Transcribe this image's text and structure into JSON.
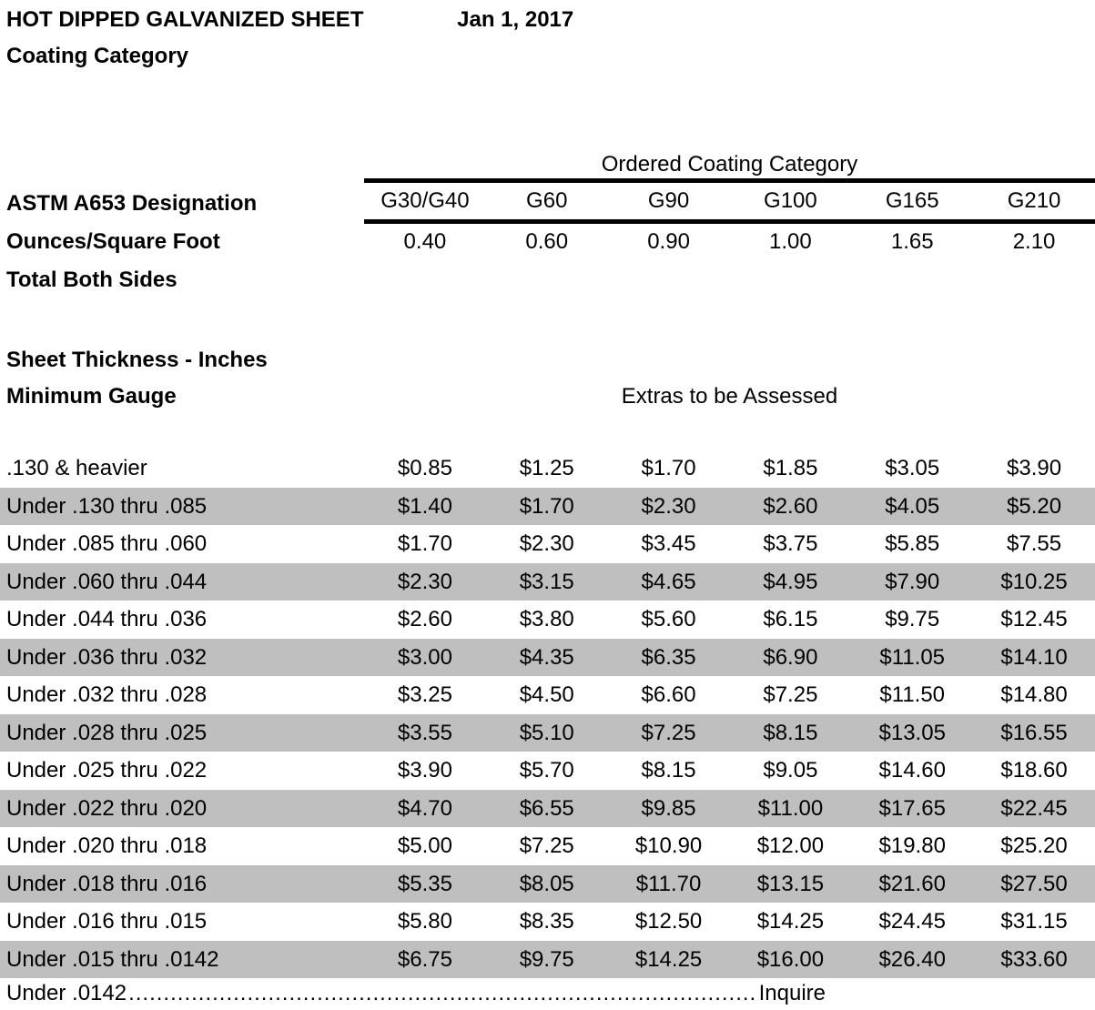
{
  "header": {
    "title": "HOT DIPPED GALVANIZED SHEET",
    "date": "Jan 1, 2017",
    "subtitle": "Coating Category"
  },
  "table": {
    "group_header": "Ordered Coating Category",
    "designation_label": "ASTM A653 Designation",
    "ounces_label": "Ounces/Square Foot",
    "total_label": "Total Both Sides",
    "thickness_label": "Sheet Thickness - Inches",
    "gauge_label": "Minimum Gauge",
    "extras_label": "Extras to be Assessed",
    "columns": [
      "G30/G40",
      "G60",
      "G90",
      "G100",
      "G165",
      "G210"
    ],
    "ounces": [
      "0.40",
      "0.60",
      "0.90",
      "1.00",
      "1.65",
      "2.10"
    ],
    "rows": [
      {
        "label": ".130 & heavier",
        "values": [
          "$0.85",
          "$1.25",
          "$1.70",
          "$1.85",
          "$3.05",
          "$3.90"
        ],
        "shaded": false
      },
      {
        "label": "Under .130 thru .085",
        "values": [
          "$1.40",
          "$1.70",
          "$2.30",
          "$2.60",
          "$4.05",
          "$5.20"
        ],
        "shaded": true
      },
      {
        "label": "Under .085 thru .060",
        "values": [
          "$1.70",
          "$2.30",
          "$3.45",
          "$3.75",
          "$5.85",
          "$7.55"
        ],
        "shaded": false
      },
      {
        "label": "Under .060 thru .044",
        "values": [
          "$2.30",
          "$3.15",
          "$4.65",
          "$4.95",
          "$7.90",
          "$10.25"
        ],
        "shaded": true
      },
      {
        "label": "Under .044 thru .036",
        "values": [
          "$2.60",
          "$3.80",
          "$5.60",
          "$6.15",
          "$9.75",
          "$12.45"
        ],
        "shaded": false
      },
      {
        "label": "Under .036 thru .032",
        "values": [
          "$3.00",
          "$4.35",
          "$6.35",
          "$6.90",
          "$11.05",
          "$14.10"
        ],
        "shaded": true
      },
      {
        "label": "Under .032 thru .028",
        "values": [
          "$3.25",
          "$4.50",
          "$6.60",
          "$7.25",
          "$11.50",
          "$14.80"
        ],
        "shaded": false
      },
      {
        "label": "Under .028 thru .025",
        "values": [
          "$3.55",
          "$5.10",
          "$7.25",
          "$8.15",
          "$13.05",
          "$16.55"
        ],
        "shaded": true
      },
      {
        "label": "Under .025 thru .022",
        "values": [
          "$3.90",
          "$5.70",
          "$8.15",
          "$9.05",
          "$14.60",
          "$18.60"
        ],
        "shaded": false
      },
      {
        "label": "Under .022 thru .020",
        "values": [
          "$4.70",
          "$6.55",
          "$9.85",
          "$11.00",
          "$17.65",
          "$22.45"
        ],
        "shaded": true
      },
      {
        "label": "Under .020 thru .018",
        "values": [
          "$5.00",
          "$7.25",
          "$10.90",
          "$12.00",
          "$19.80",
          "$25.20"
        ],
        "shaded": false
      },
      {
        "label": "Under .018 thru .016",
        "values": [
          "$5.35",
          "$8.05",
          "$11.70",
          "$13.15",
          "$21.60",
          "$27.50"
        ],
        "shaded": true
      },
      {
        "label": "Under .016 thru .015",
        "values": [
          "$5.80",
          "$8.35",
          "$12.50",
          "$14.25",
          "$24.45",
          "$31.15"
        ],
        "shaded": false
      },
      {
        "label": "Under .015 thru .0142",
        "values": [
          "$6.75",
          "$9.75",
          "$14.25",
          "$16.00",
          "$26.40",
          "$33.60"
        ],
        "shaded": true
      }
    ],
    "footer": {
      "label": "Under .0142",
      "value": "Inquire"
    }
  }
}
